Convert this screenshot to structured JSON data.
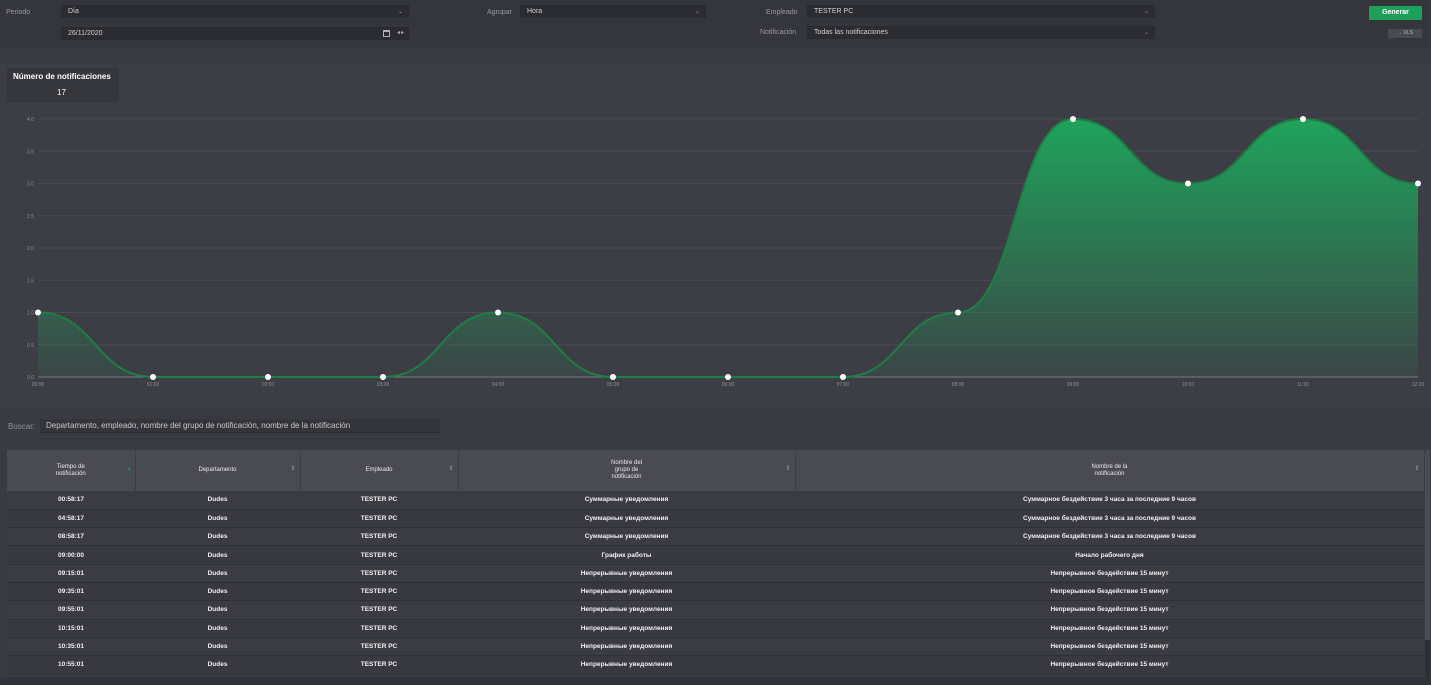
{
  "filters": {
    "periodo_label": "Periodo",
    "periodo_value": "Día",
    "date_value": "26/11/2020",
    "agrupar_label": "Agrupar",
    "agrupar_value": "Hora",
    "empleado_label": "Empleado",
    "empleado_value": "TESTER PC",
    "notificacion_label": "Notificación",
    "notificacion_value": "Todas las notificaciones",
    "generar_label": "Generar",
    "xls_label": "→ XLS"
  },
  "summary": {
    "title": "Número de notificaciones",
    "value": "17"
  },
  "chart_data": {
    "type": "area",
    "x": [
      "00:00",
      "01:00",
      "02:00",
      "03:00",
      "04:00",
      "05:00",
      "06:00",
      "07:00",
      "08:00",
      "09:00",
      "10:00",
      "11:00",
      "12:00"
    ],
    "values": [
      1,
      0,
      0,
      0,
      1,
      0,
      0,
      0,
      1,
      4,
      3,
      4,
      3
    ],
    "yticks": [
      "0.0",
      "0.5",
      "1.0",
      "1.5",
      "2.0",
      "2.5",
      "3.0",
      "3.5",
      "4.0"
    ],
    "ylim": [
      0,
      4
    ],
    "grid": true,
    "color": "#1ea05a"
  },
  "search": {
    "label": "Buscar:",
    "placeholder": "Departamento, empleado, nombre del grupo de notificación, nombre de la notificación"
  },
  "table": {
    "headers": [
      "Tiempo de notificación",
      "Departamento",
      "Empleado",
      "Nombre del grupo de notificación",
      "Nombre de la notificación"
    ],
    "rows": [
      [
        "00:58:17",
        "Dudes",
        "TESTER PC",
        "Суммарные уведомления",
        "Суммарное бездействие 3 часа за последние 9 часов"
      ],
      [
        "04:58:17",
        "Dudes",
        "TESTER PC",
        "Суммарные уведомления",
        "Суммарное бездействие 3 часа за последние 9 часов"
      ],
      [
        "08:58:17",
        "Dudes",
        "TESTER PC",
        "Суммарные уведомления",
        "Суммарное бездействие 3 часа за последние 9 часов"
      ],
      [
        "09:00:00",
        "Dudes",
        "TESTER PC",
        "График работы",
        "Начало рабочего дня"
      ],
      [
        "09:15:01",
        "Dudes",
        "TESTER PC",
        "Непрерывные уведомления",
        "Непрерывное бездействие 15 минут"
      ],
      [
        "09:35:01",
        "Dudes",
        "TESTER PC",
        "Непрерывные уведомления",
        "Непрерывное бездействие 15 минут"
      ],
      [
        "09:55:01",
        "Dudes",
        "TESTER PC",
        "Непрерывные уведомления",
        "Непрерывное бездействие 15 минут"
      ],
      [
        "10:15:01",
        "Dudes",
        "TESTER PC",
        "Непрерывные уведомления",
        "Непрерывное бездействие 15 минут"
      ],
      [
        "10:35:01",
        "Dudes",
        "TESTER PC",
        "Непрерывные уведомления",
        "Непрерывное бездействие 15 минут"
      ],
      [
        "10:55:01",
        "Dudes",
        "TESTER PC",
        "Непрерывные уведомления",
        "Непрерывное бездействие 15 минут"
      ]
    ]
  }
}
